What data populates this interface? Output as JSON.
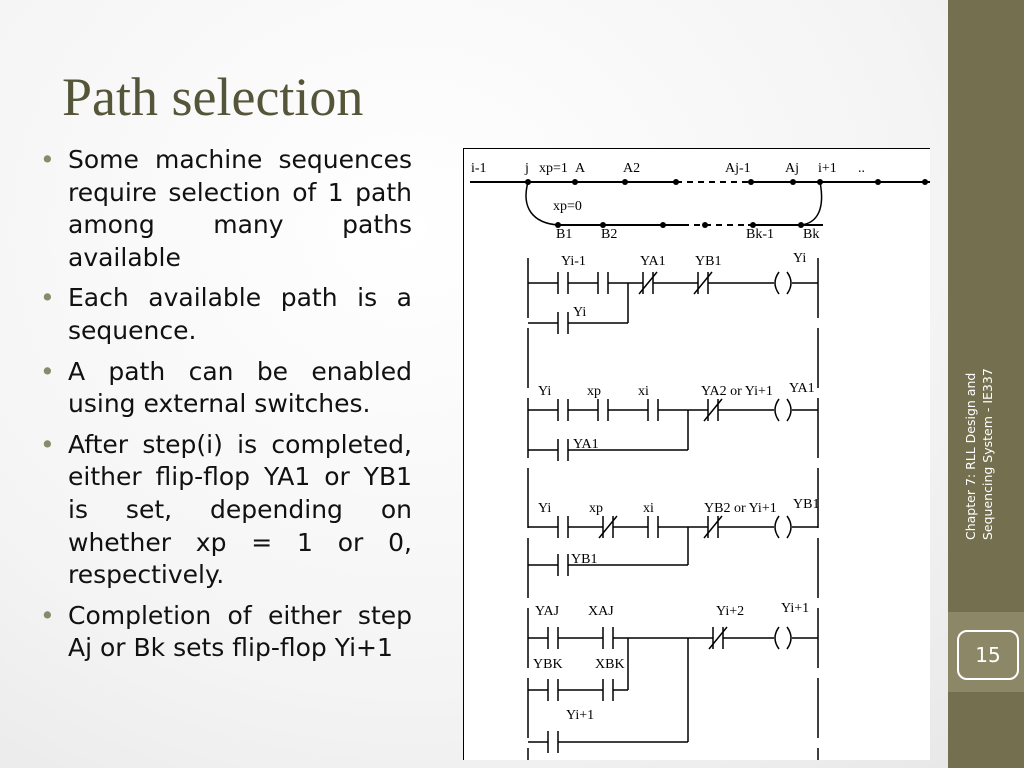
{
  "header": {
    "title": "Path selection"
  },
  "bullets": [
    "Some machine sequences require selection of 1 path among many paths available",
    "Each available path is a sequence.",
    "A path can be enabled using external switches.",
    "After step(i) is completed, either flip-flop YA1 or YB1 is set, depending on whether xp = 1 or 0, respectively.",
    "Completion of either step Aj or Bk sets flip-flop Yi+1"
  ],
  "sidebar": {
    "chapter": "Chapter 7: RLL Design and Sequencing System - IE337",
    "page_number": "15"
  },
  "diagram": {
    "labels": [
      "i-1",
      "j",
      "xp=1",
      "A",
      "A2",
      "Aj-1",
      "Aj",
      "i+1",
      "..",
      "xp=0",
      "B1",
      "B2",
      "Bk-1",
      "Bk",
      "Yi-1",
      "YA1",
      "YB1",
      "Yi",
      "Yi",
      "Yi",
      "xp",
      "xi",
      "YA2 or Yi+1",
      "YA1",
      "YA1",
      "Yi",
      "xp",
      "xi",
      "YB2 or Yi+1",
      "YB1",
      "YB1",
      "YAJ",
      "XAJ",
      "Yi+2",
      "Yi+1",
      "YBK",
      "XBK",
      "Yi+1"
    ]
  }
}
